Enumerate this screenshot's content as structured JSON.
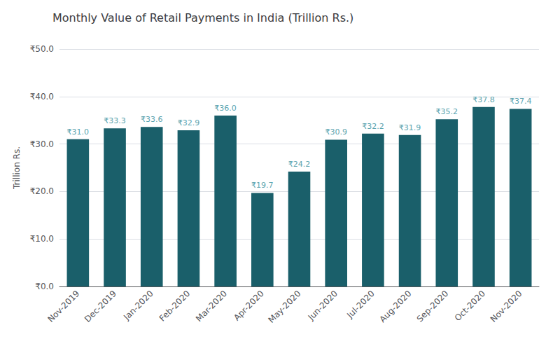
{
  "chart_data": {
    "type": "bar",
    "title": "Monthly Value of Retail Payments in India (Trillion Rs.)",
    "categories": [
      "Nov-2019",
      "Dec-2019",
      "Jan-2020",
      "Feb-2020",
      "Mar-2020",
      "Apr-2020",
      "May-2020",
      "Jun-2020",
      "Jul-2020",
      "Aug-2020",
      "Sep-2020",
      "Oct-2020",
      "Nov-2020"
    ],
    "values": [
      31.0,
      33.3,
      33.6,
      32.9,
      36.0,
      19.7,
      24.2,
      30.9,
      32.2,
      31.9,
      35.2,
      37.8,
      37.4
    ],
    "value_labels": [
      "₹31.0",
      "₹33.3",
      "₹33.6",
      "₹32.9",
      "₹36.0",
      "₹19.7",
      "₹24.2",
      "₹30.9",
      "₹32.2",
      "₹31.9",
      "₹35.2",
      "₹37.8",
      "₹37.4"
    ],
    "data_labels": true,
    "color": "#1a5f6a",
    "ylabel": "Trillion Rs.",
    "ylim": [
      0,
      50
    ],
    "yticks": [
      {
        "value": 0,
        "label": "₹0.0"
      },
      {
        "value": 10,
        "label": "₹10.0"
      },
      {
        "value": 20,
        "label": "₹20.0"
      },
      {
        "value": 30,
        "label": "₹30.0"
      },
      {
        "value": 40,
        "label": "₹40.0"
      },
      {
        "value": 50,
        "label": "₹50.0"
      }
    ],
    "grid": true
  }
}
